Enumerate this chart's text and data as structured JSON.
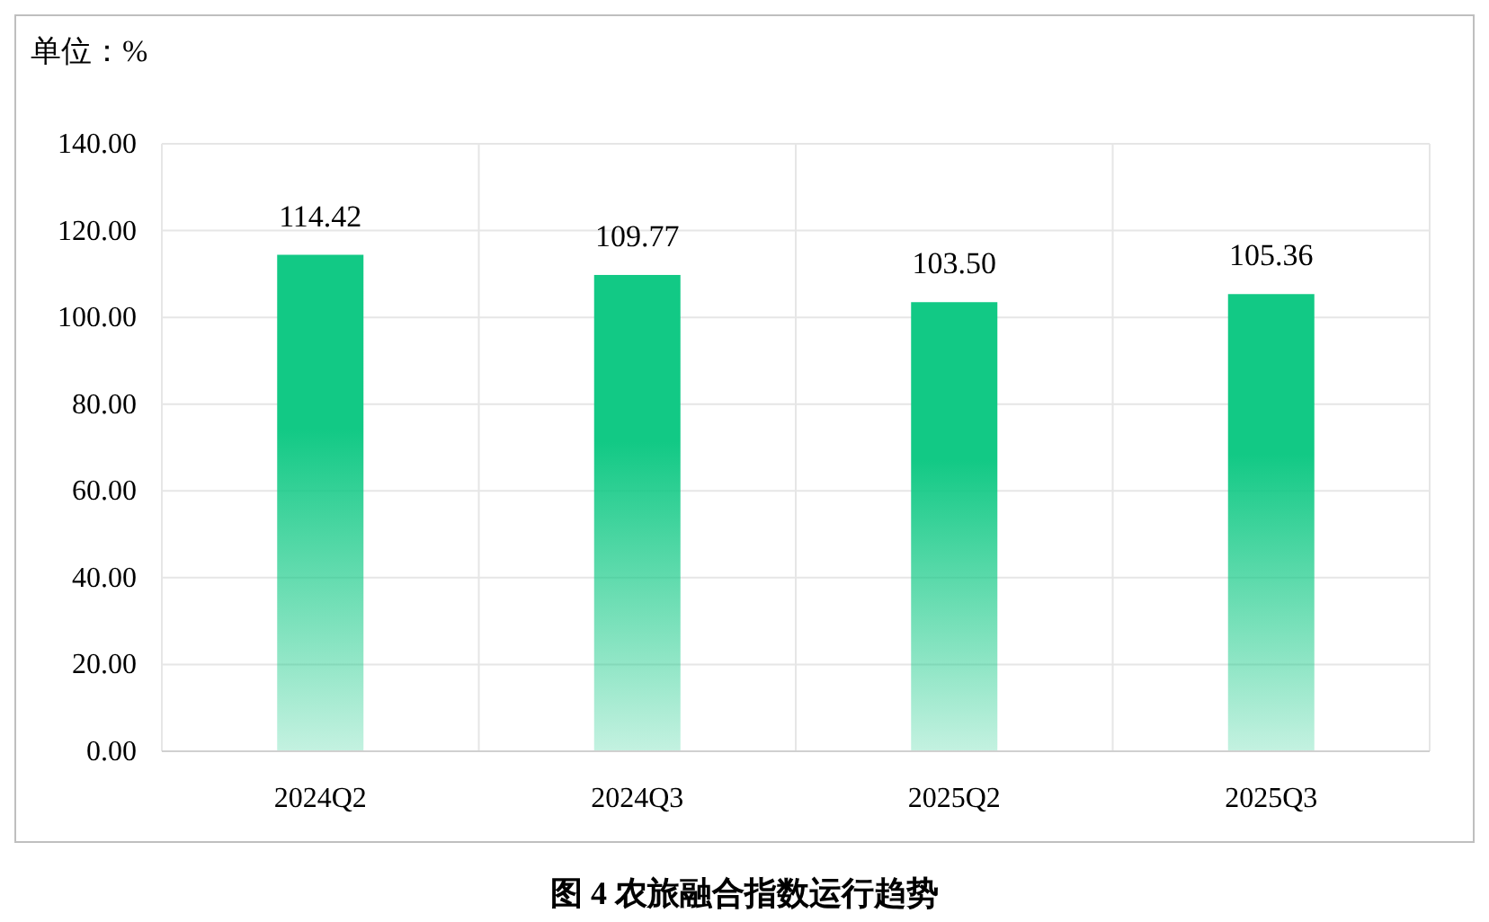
{
  "chart_data": {
    "type": "bar",
    "title": "图 4  农旅融合指数运行趋势",
    "ylabel": "单位：%",
    "categories": [
      "2024Q2",
      "2024Q3",
      "2025Q2",
      "2025Q3"
    ],
    "values": [
      114.42,
      109.77,
      103.5,
      105.36
    ],
    "value_labels": [
      "114.42",
      "109.77",
      "103.50",
      "105.36"
    ],
    "color": "#12c985",
    "ylim": [
      0,
      140
    ],
    "yticks": [
      {
        "value": 0,
        "label": "0.00"
      },
      {
        "value": 20,
        "label": "20.00"
      },
      {
        "value": 40,
        "label": "40.00"
      },
      {
        "value": 60,
        "label": "60.00"
      },
      {
        "value": 80,
        "label": "80.00"
      },
      {
        "value": 100,
        "label": "100.00"
      },
      {
        "value": 120,
        "label": "120.00"
      },
      {
        "value": 140,
        "label": "140.00"
      }
    ],
    "grid": true
  }
}
